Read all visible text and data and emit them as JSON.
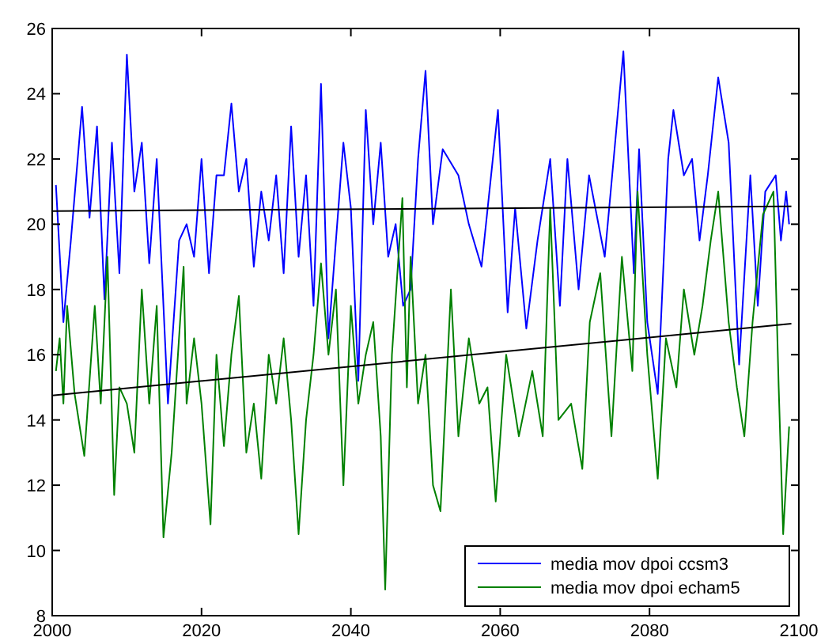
{
  "chart_data": {
    "type": "line",
    "xlim": [
      2000,
      2100
    ],
    "ylim": [
      8,
      26
    ],
    "xticks": [
      2000,
      2020,
      2040,
      2060,
      2080,
      2100
    ],
    "yticks": [
      8,
      10,
      12,
      14,
      16,
      18,
      20,
      22,
      24,
      26
    ],
    "grid": false,
    "legend": "bottom right",
    "line_style": "solid",
    "marker": "none",
    "series": [
      {
        "name": "media mov dpoi ccsm3",
        "color": "#0000ff",
        "x": [
          2000.5,
          2001.5,
          2002.5,
          2004,
          2005,
          2006,
          2007,
          2008,
          2009,
          2010,
          2011,
          2012,
          2013,
          2014,
          2015.5,
          2017,
          2018,
          2019,
          2020,
          2021,
          2022,
          2023,
          2024,
          2025,
          2026,
          2027,
          2028,
          2029,
          2030,
          2031,
          2032,
          2033,
          2034,
          2035,
          2036,
          2037,
          2038,
          2039,
          2040,
          2041,
          2042,
          2043,
          2044,
          2045,
          2046,
          2047,
          2048,
          2049,
          2050,
          2051,
          2052.3,
          2054.4,
          2055.8,
          2057.5,
          2059.7,
          2061,
          2062,
          2063.5,
          2065,
          2066.7,
          2068,
          2069,
          2070.5,
          2071.9,
          2074,
          2075,
          2076.5,
          2077.9,
          2078.6,
          2079.7,
          2081.1,
          2082.5,
          2083.2,
          2084.6,
          2085.7,
          2086.7,
          2087.8,
          2089.2,
          2090.6,
          2092,
          2093.5,
          2094.5,
          2095.5,
          2096.9,
          2097.6,
          2098.3,
          2098.7
        ],
        "values": [
          21.2,
          17,
          19.5,
          23.6,
          20.2,
          23,
          17.7,
          22.5,
          18.5,
          25.2,
          21,
          22.5,
          18.8,
          22,
          14.5,
          19.5,
          20,
          19,
          22,
          18.5,
          21.5,
          21.5,
          23.7,
          21,
          22,
          18.7,
          21,
          19.5,
          21.5,
          18.5,
          23,
          19,
          21.5,
          17.5,
          24.3,
          16.5,
          19.5,
          22.5,
          20.5,
          15.2,
          23.5,
          20,
          22.5,
          19,
          20,
          17.5,
          18,
          22,
          24.7,
          20,
          22.3,
          21.5,
          20,
          18.7,
          23.5,
          17.3,
          20.5,
          16.8,
          19.5,
          22,
          17.5,
          22,
          18,
          21.5,
          19,
          21.5,
          25.3,
          18.5,
          22.3,
          17,
          14.8,
          22,
          23.5,
          21.5,
          22,
          19.5,
          21.5,
          24.5,
          22.5,
          15.7,
          21.5,
          17.5,
          21,
          21.5,
          19.5,
          21,
          20
        ]
      },
      {
        "name": "media mov dpoi echam5",
        "color": "#008000",
        "x": [
          2000.5,
          2001,
          2001.5,
          2002,
          2003,
          2004.3,
          2005.7,
          2006.5,
          2007.4,
          2008.3,
          2009,
          2010,
          2011,
          2012,
          2013,
          2014,
          2014.9,
          2016,
          2017.6,
          2018,
          2019,
          2020,
          2021.2,
          2022,
          2023,
          2024,
          2025,
          2026,
          2027,
          2028,
          2029,
          2030,
          2031,
          2032,
          2033,
          2034,
          2035,
          2036,
          2037,
          2038,
          2039,
          2040,
          2041,
          2042,
          2043,
          2044,
          2044.6,
          2045.5,
          2046.9,
          2047.5,
          2048,
          2049,
          2050,
          2051,
          2052,
          2053.4,
          2054.4,
          2055.8,
          2057.2,
          2058.3,
          2059.4,
          2060.8,
          2062.5,
          2064.3,
          2065.7,
          2066.7,
          2067.8,
          2069.5,
          2071,
          2072,
          2073.4,
          2074.9,
          2076.3,
          2077.7,
          2078.4,
          2079.7,
          2081.1,
          2082.2,
          2083.6,
          2084.6,
          2086,
          2087.1,
          2088.2,
          2089.2,
          2090.6,
          2091.7,
          2092.7,
          2093.8,
          2095.2,
          2096.6,
          2097.3,
          2097.9,
          2098.7
        ],
        "values": [
          15.5,
          16.5,
          14.5,
          17.5,
          14.8,
          12.9,
          17.5,
          14.5,
          19,
          11.7,
          15,
          14.5,
          13,
          18,
          14.5,
          17.5,
          10.4,
          13,
          18.7,
          14.5,
          16.5,
          14.5,
          10.8,
          16,
          13.2,
          16,
          17.8,
          13,
          14.5,
          12.2,
          16,
          14.5,
          16.5,
          14,
          10.5,
          14,
          16,
          18.8,
          16,
          18,
          12,
          17.5,
          14.5,
          16,
          17,
          13.5,
          8.8,
          16,
          20.8,
          15,
          19,
          14.5,
          16,
          12,
          11.2,
          18,
          13.5,
          16.5,
          14.5,
          15,
          11.5,
          16,
          13.5,
          15.5,
          13.5,
          20.5,
          14,
          14.5,
          12.5,
          17,
          18.5,
          13.5,
          19,
          15.5,
          21,
          16,
          12.2,
          16.5,
          15,
          18,
          16,
          17.5,
          19.5,
          21,
          17,
          15,
          13.5,
          17,
          20.3,
          21,
          15,
          10.5,
          13.8
        ]
      },
      {
        "type": "line",
        "color": "#000000",
        "x": [
          2000,
          2099
        ],
        "values": [
          20.4,
          20.55
        ]
      },
      {
        "type": "line",
        "color": "#000000",
        "x": [
          2000,
          2099
        ],
        "values": [
          14.75,
          16.95
        ]
      }
    ]
  }
}
